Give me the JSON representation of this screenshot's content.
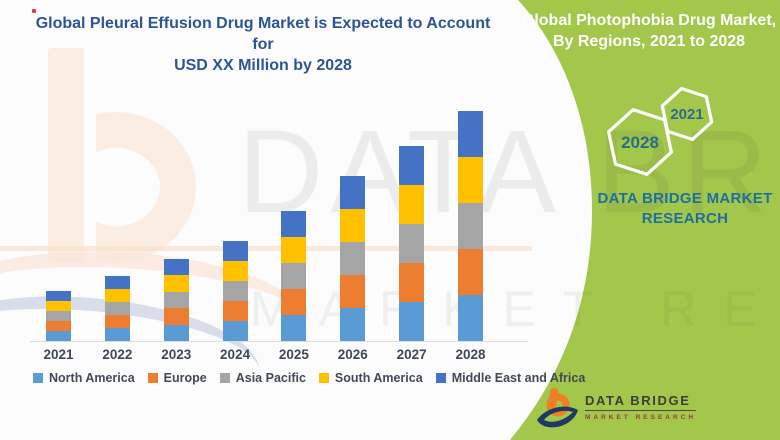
{
  "colors": {
    "green_panel": "#A3C74B",
    "left_title": "#2f5496",
    "hexagon_number": "#2a6d87",
    "brand_blue": "#1e6f9e",
    "axis_label": "#404756",
    "logo_orange": "#F07E26",
    "logo_navy": "#1F3864",
    "logo_subtitle_red": "#93403c"
  },
  "left_panel": {
    "title_line1": "Global Pleural Effusion Drug Market is Expected to Account for",
    "title_line2": "USD XX Million by 2028"
  },
  "chart_data": {
    "type": "bar",
    "stacked": true,
    "title": "Global Pleural Effusion Drug Market is Expected to Account for USD XX Million by 2028",
    "xlabel": "",
    "ylabel": "",
    "values_unit": "relative index (chart shows 'USD XX Million' — actual values not displayed)",
    "grid": false,
    "y_axis_visible": false,
    "legend_position": "bottom",
    "categories": [
      "2021",
      "2022",
      "2023",
      "2024",
      "2025",
      "2026",
      "2027",
      "2028"
    ],
    "series": [
      {
        "name": "North America",
        "color": "#5B9BD5",
        "values": [
          10,
          13,
          16.5,
          20,
          26,
          33,
          39,
          46
        ]
      },
      {
        "name": "Europe",
        "color": "#ED7D31",
        "values": [
          10,
          13,
          16.5,
          20,
          26,
          33,
          39,
          46
        ]
      },
      {
        "name": "Asia Pacific",
        "color": "#A5A5A5",
        "values": [
          10,
          13,
          16.5,
          20,
          26,
          33,
          39,
          46
        ]
      },
      {
        "name": "South America",
        "color": "#FFC000",
        "values": [
          10,
          13,
          16.5,
          20,
          26,
          33,
          39,
          46
        ]
      },
      {
        "name": "Middle East and Africa",
        "color": "#4472C4",
        "values": [
          10,
          13,
          16.5,
          20,
          26,
          33,
          39,
          46
        ]
      }
    ]
  },
  "right_panel": {
    "title_line1": "Global Photophobia Drug Market,",
    "title_line2": "By Regions, 2021 to 2028",
    "hexagons": [
      {
        "label": "2028"
      },
      {
        "label": "2021"
      }
    ],
    "brand_line1": "DATA BRIDGE MARKET",
    "brand_line2": "RESEARCH"
  },
  "footer_logo": {
    "name": "DATA BRIDGE",
    "subtitle": "MARKET RESEARCH"
  },
  "watermark": {
    "line1": "DATA BRIDGE",
    "line2": "MARKET RESEARCH"
  }
}
